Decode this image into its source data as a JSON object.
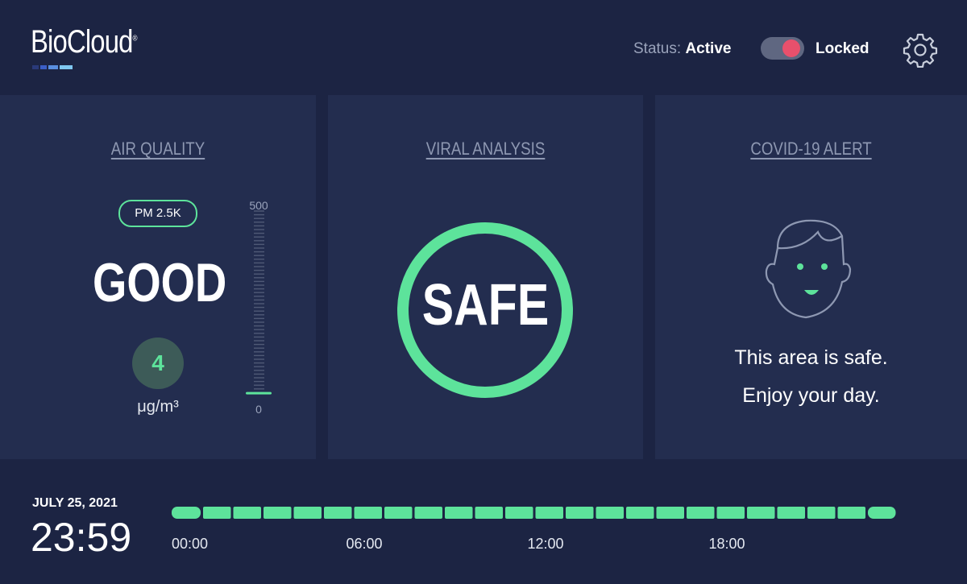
{
  "header": {
    "logo": "BioCloud",
    "logo_mark": "®",
    "status_label": "Status:",
    "status_value": "Active",
    "lock_label": "Locked"
  },
  "panels": {
    "air_quality": {
      "title": "AIR QUALITY",
      "pill": "PM 2.5K",
      "rating": "GOOD",
      "unit": "μg/m³",
      "gauge": {
        "min": 0,
        "max": 500,
        "value": 4
      }
    },
    "viral_analysis": {
      "title": "VIRAL ANALYSIS",
      "result": "SAFE"
    },
    "covid_alert": {
      "title": "COVID-19 ALERT",
      "line1": "This area is safe.",
      "line2": "Enjoy your day."
    }
  },
  "footer": {
    "date": "JULY 25, 2021",
    "time": "23:59",
    "timeline_labels": [
      "00:00",
      "06:00",
      "12:00",
      "18:00"
    ]
  }
}
